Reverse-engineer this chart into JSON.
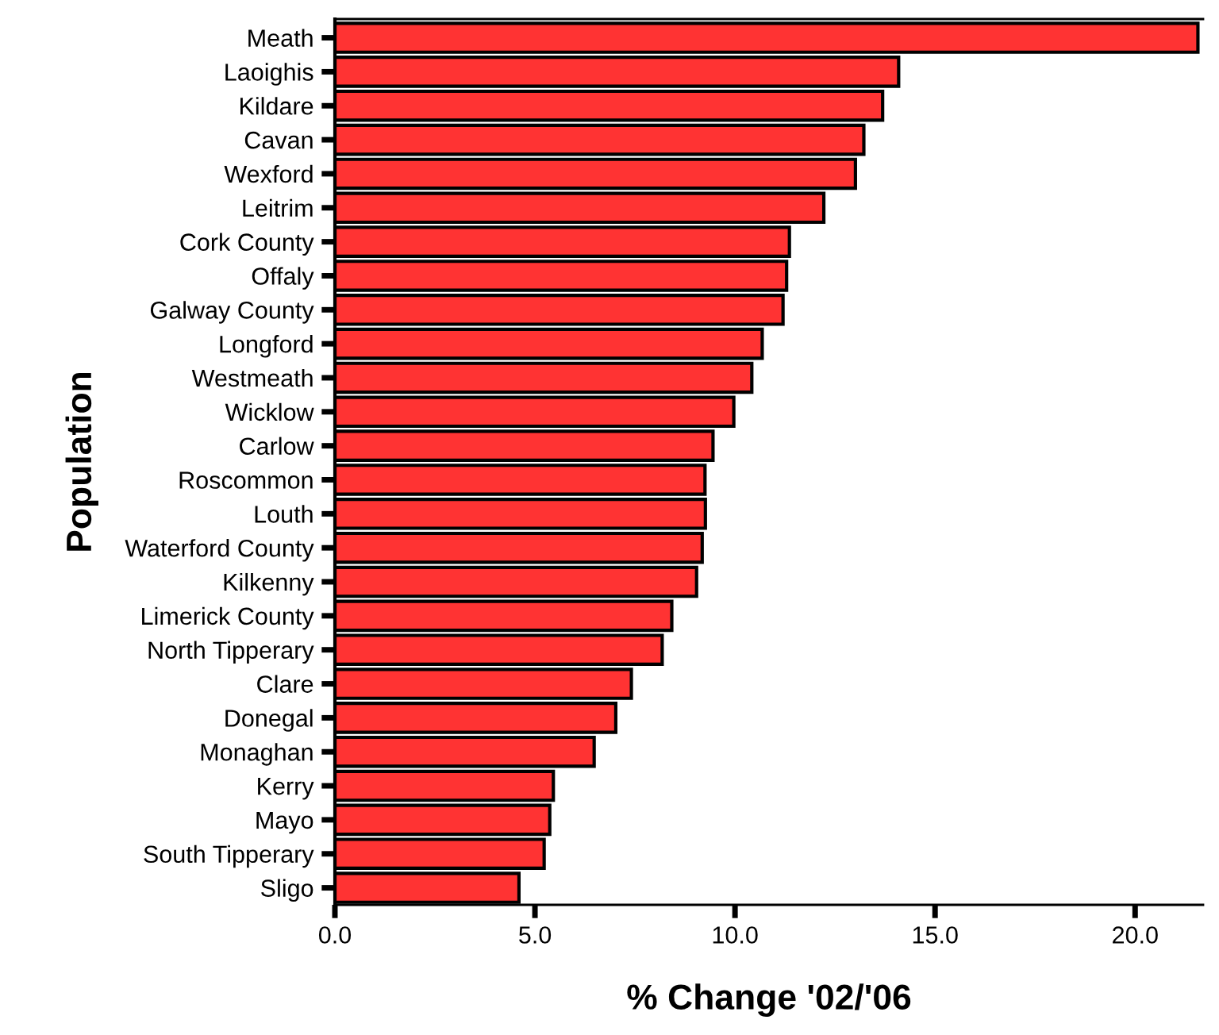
{
  "chart_data": {
    "type": "bar",
    "orientation": "horizontal",
    "xlabel": "% Change '02/'06",
    "ylabel": "Population",
    "categories": [
      "Meath",
      "Laoighis",
      "Kildare",
      "Cavan",
      "Wexford",
      "Leitrim",
      "Cork County",
      "Offaly",
      "Galway County",
      "Longford",
      "Westmeath",
      "Wicklow",
      "Carlow",
      "Roscommon",
      "Louth",
      "Waterford County",
      "Kilkenny",
      "Limerick County",
      "North Tipperary",
      "Clare",
      "Donegal",
      "Monaghan",
      "Kerry",
      "Mayo",
      "South Tipperary",
      "Sligo"
    ],
    "values": [
      21.57,
      14.09,
      13.69,
      13.22,
      13.01,
      12.22,
      11.36,
      11.29,
      11.2,
      10.68,
      10.42,
      9.97,
      9.45,
      9.25,
      9.26,
      9.18,
      9.04,
      8.42,
      8.18,
      7.41,
      7.02,
      6.48,
      5.46,
      5.37,
      5.23,
      4.6
    ],
    "color": "#ff3333",
    "xlim": [
      0,
      21.7
    ],
    "xticks": [
      {
        "value": 0,
        "label": "0.0"
      },
      {
        "value": 5,
        "label": "5.0"
      },
      {
        "value": 10,
        "label": "10.0"
      },
      {
        "value": 15,
        "label": "15.0"
      },
      {
        "value": 20,
        "label": "20.0"
      }
    ],
    "grid": false,
    "legend": false
  }
}
